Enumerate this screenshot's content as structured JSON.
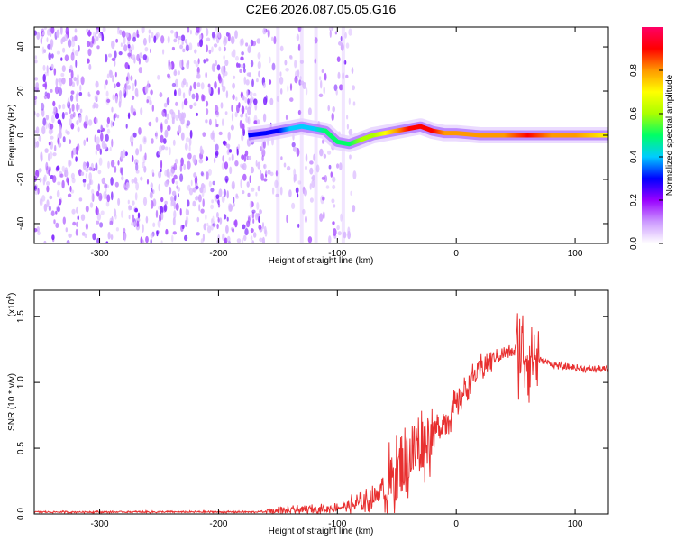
{
  "chart_data": [
    {
      "type": "heatmap",
      "title": "C2E6.2026.087.05.05.G16",
      "xlabel": "Height of straight line (km)",
      "ylabel": "Frequency (Hz)",
      "xlim": [
        -355,
        128
      ],
      "ylim": [
        -49,
        49
      ],
      "xticks": [
        -300,
        -200,
        -100,
        0,
        100
      ],
      "xtick_labels": [
        "-300",
        "-200",
        "-100",
        "0",
        "100"
      ],
      "yticks": [
        -40,
        -20,
        0,
        20,
        40
      ],
      "ytick_labels": [
        "-40",
        "-20",
        "0",
        "20",
        "40"
      ],
      "colorbar": {
        "label": "Normalized spectral amplitude",
        "range": [
          0,
          1
        ],
        "ticks": [
          0.0,
          0.2,
          0.4,
          0.6,
          0.8
        ],
        "tick_labels": [
          "0.0",
          "0.2",
          "0.4",
          "0.6",
          "0.8"
        ],
        "colors": [
          "#ffffff",
          "#cc99ff",
          "#9900ff",
          "#0000ff",
          "#00ccff",
          "#00ff66",
          "#aaff00",
          "#ffff00",
          "#ff9900",
          "#ff0000",
          "#ff0066"
        ]
      },
      "signal_track": {
        "x": [
          -175,
          -160,
          -150,
          -140,
          -130,
          -120,
          -110,
          -100,
          -90,
          -80,
          -70,
          -60,
          -50,
          -40,
          -30,
          -20,
          -10,
          0,
          20,
          40,
          60,
          80,
          100,
          128
        ],
        "freq": [
          0,
          1,
          2,
          3,
          4,
          3,
          2,
          -3,
          -4,
          -2,
          0,
          1,
          2,
          3,
          4,
          2,
          1,
          1,
          0,
          0,
          0,
          0,
          0,
          0
        ],
        "amplitude": [
          0.25,
          0.3,
          0.3,
          0.35,
          0.4,
          0.4,
          0.45,
          0.45,
          0.5,
          0.55,
          0.6,
          0.7,
          0.75,
          0.85,
          0.9,
          0.85,
          0.8,
          0.75,
          0.8,
          0.8,
          0.85,
          0.8,
          0.75,
          0.7
        ]
      },
      "noise_region_x": [
        -355,
        -85
      ]
    },
    {
      "type": "line",
      "xlabel": "Height of straight line (km)",
      "ylabel": "SNR (10 * v/v)",
      "yscale_label": "(x10",
      "yscale_exp": "4",
      "yscale_close": ")",
      "xlim": [
        -355,
        128
      ],
      "ylim": [
        0,
        1.7
      ],
      "xticks": [
        -300,
        -200,
        -100,
        0,
        100
      ],
      "xtick_labels": [
        "-300",
        "-200",
        "-100",
        "0",
        "100"
      ],
      "yticks": [
        0.0,
        0.5,
        1.0,
        1.5
      ],
      "ytick_labels": [
        "0.0",
        "0.5",
        "1.0",
        "1.5"
      ],
      "line_color": "#e83030",
      "series": [
        {
          "name": "SNR",
          "x": [
            -355,
            -300,
            -250,
            -200,
            -170,
            -150,
            -130,
            -110,
            -100,
            -90,
            -80,
            -70,
            -60,
            -50,
            -45,
            -40,
            -35,
            -30,
            -25,
            -20,
            -15,
            -10,
            -5,
            0,
            5,
            10,
            15,
            20,
            25,
            30,
            35,
            40,
            45,
            50,
            55,
            58,
            60,
            62,
            65,
            70,
            80,
            90,
            100,
            110,
            120,
            128
          ],
          "y": [
            0.015,
            0.015,
            0.015,
            0.015,
            0.015,
            0.02,
            0.03,
            0.04,
            0.05,
            0.06,
            0.08,
            0.12,
            0.2,
            0.3,
            0.36,
            0.42,
            0.48,
            0.52,
            0.56,
            0.6,
            0.65,
            0.7,
            0.76,
            0.82,
            0.9,
            0.98,
            1.04,
            1.1,
            1.14,
            1.18,
            1.2,
            1.22,
            1.23,
            1.24,
            1.24,
            1.23,
            1.22,
            1.21,
            1.2,
            1.17,
            1.14,
            1.12,
            1.11,
            1.1,
            1.1,
            1.1
          ]
        }
      ],
      "noise_amplitude": [
        {
          "x0": -160,
          "x1": -90,
          "amp": 0.04
        },
        {
          "x0": -90,
          "x1": -60,
          "amp": 0.1
        },
        {
          "x0": -60,
          "x1": -20,
          "amp": 0.32
        },
        {
          "x0": -20,
          "x1": 0,
          "amp": 0.15
        },
        {
          "x0": 0,
          "x1": 30,
          "amp": 0.12
        },
        {
          "x0": 30,
          "x1": 50,
          "amp": 0.06
        },
        {
          "x0": 50,
          "x1": 70,
          "amp": 0.38
        },
        {
          "x0": 70,
          "x1": 128,
          "amp": 0.03
        }
      ]
    }
  ]
}
